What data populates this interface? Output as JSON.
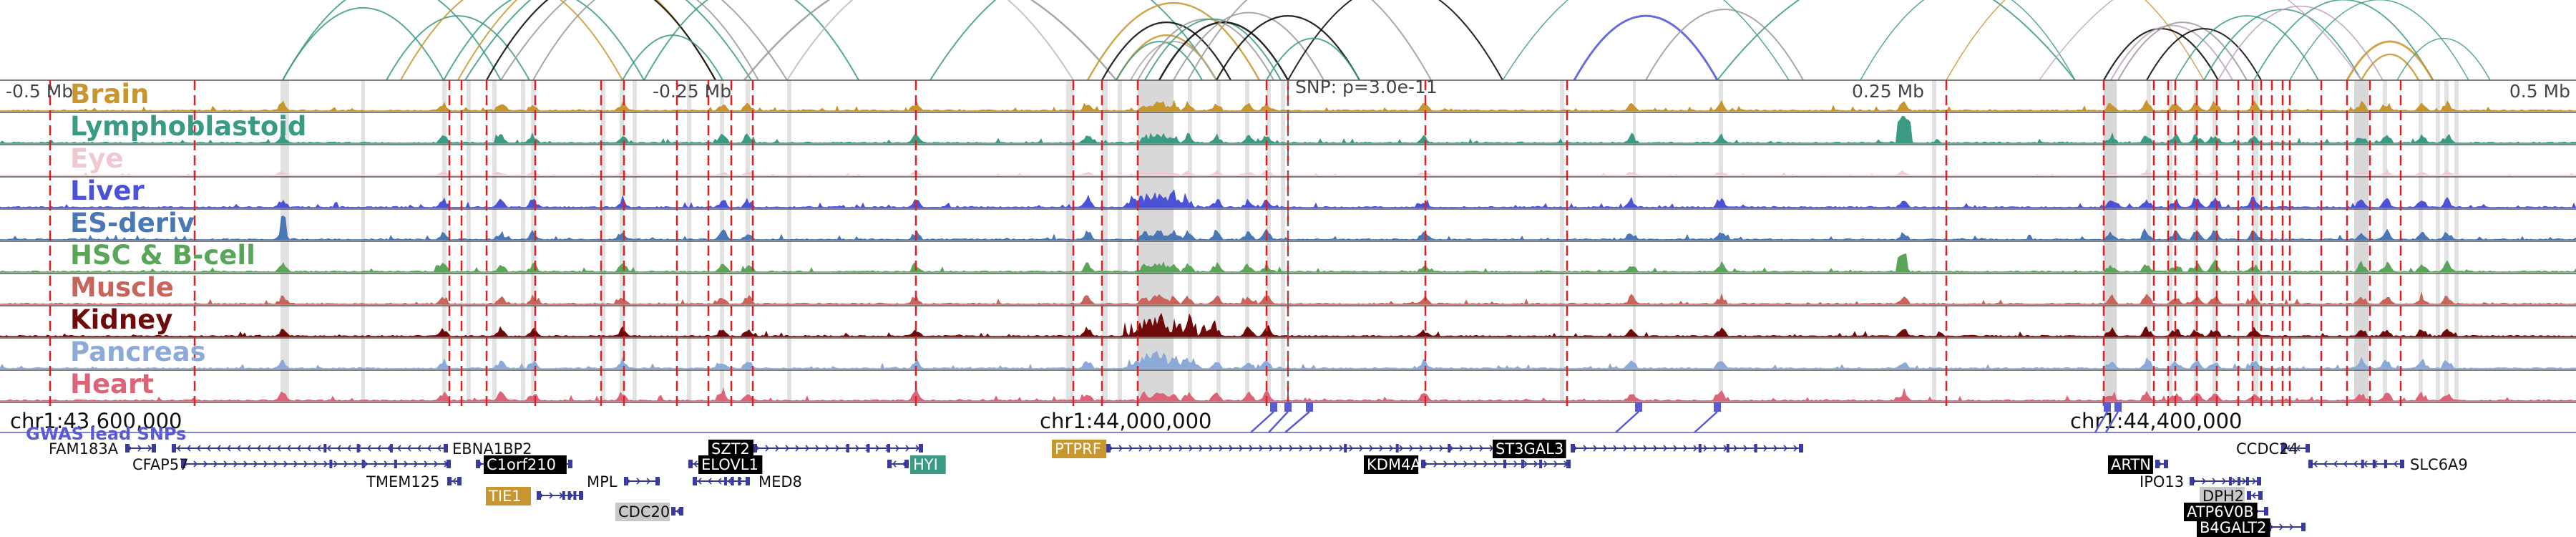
{
  "header": {
    "left_scale": "-0.5 Mb",
    "mid_left_scale": "-0.25 Mb",
    "snp_label": "SNP: p=3.0e-11",
    "mid_right_scale": "0.25 Mb",
    "right_scale": "0.5 Mb"
  },
  "tracks": [
    {
      "label": "Brain",
      "color": "#c8962e"
    },
    {
      "label": "Lymphoblastoid",
      "color": "#3a9a84"
    },
    {
      "label": "Eye",
      "color": "#f0c8d0"
    },
    {
      "label": "Liver",
      "color": "#4b52d6"
    },
    {
      "label": "ES-deriv",
      "color": "#4a78b4"
    },
    {
      "label": "HSC & B-cell",
      "color": "#5aa55a"
    },
    {
      "label": "Muscle",
      "color": "#c8645a"
    },
    {
      "label": "Kidney",
      "color": "#6e0a0a"
    },
    {
      "label": "Pancreas",
      "color": "#8caad8"
    },
    {
      "label": "Heart",
      "color": "#dc6478"
    }
  ],
  "coordinates": [
    {
      "label": "chr1:43,600,000"
    },
    {
      "label": "chr1:44,000,000"
    },
    {
      "label": "chr1:44,400,000"
    }
  ],
  "gwas_label": "GWAS lead SNPs",
  "colors": {
    "highlight_gold": "#c8962e",
    "highlight_black": "#000000",
    "highlight_teal": "#3a9a84",
    "highlight_gray": "#c8c8c8",
    "gene_blue": "#3a3a9a",
    "snp_blue": "#5a5ad2",
    "line_red": "#e02020"
  },
  "genes": [
    {
      "name": "FAM183A",
      "style": "plain"
    },
    {
      "name": "CFAP57",
      "style": "plain"
    },
    {
      "name": "EBNA1BP2",
      "style": "plain"
    },
    {
      "name": "TMEM125",
      "style": "plain"
    },
    {
      "name": "C1orf210",
      "style": "black"
    },
    {
      "name": "TIE1",
      "style": "gold"
    },
    {
      "name": "MPL",
      "style": "plain"
    },
    {
      "name": "CDC20",
      "style": "gray"
    },
    {
      "name": "SZT2",
      "style": "black"
    },
    {
      "name": "ELOVL1",
      "style": "black"
    },
    {
      "name": "MED8",
      "style": "plain"
    },
    {
      "name": "HYI",
      "style": "teal"
    },
    {
      "name": "PTPRF",
      "style": "gold"
    },
    {
      "name": "KDM4A",
      "style": "black"
    },
    {
      "name": "ST3GAL3",
      "style": "black"
    },
    {
      "name": "CCDC24",
      "style": "plain"
    },
    {
      "name": "ARTN",
      "style": "black"
    },
    {
      "name": "SLC6A9",
      "style": "plain"
    },
    {
      "name": "IPO13",
      "style": "plain"
    },
    {
      "name": "DPH2",
      "style": "gray"
    },
    {
      "name": "ATP6V0B",
      "style": "black"
    },
    {
      "name": "B4GALT2",
      "style": "black"
    }
  ]
}
